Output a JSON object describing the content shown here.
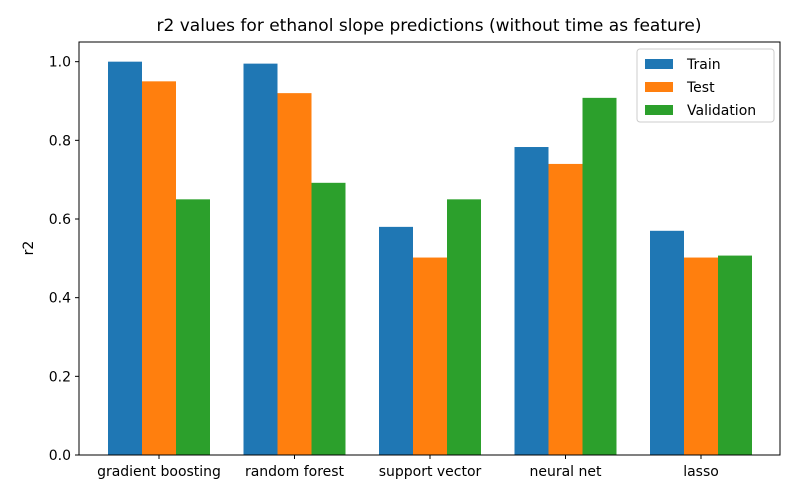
{
  "chart_data": {
    "type": "bar",
    "title": "r2 values for ethanol slope predictions (without time as feature)",
    "xlabel": "",
    "ylabel": "r2",
    "categories": [
      "gradient boosting",
      "random forest",
      "support vector",
      "neural net",
      "lasso"
    ],
    "series": [
      {
        "name": "Train",
        "color": "#1f77b4",
        "values": [
          1.0,
          0.995,
          0.58,
          0.783,
          0.57
        ]
      },
      {
        "name": "Test",
        "color": "#ff7f0e",
        "values": [
          0.95,
          0.92,
          0.502,
          0.74,
          0.502
        ]
      },
      {
        "name": "Validation",
        "color": "#2ca02c",
        "values": [
          0.65,
          0.692,
          0.65,
          0.908,
          0.507
        ]
      }
    ],
    "ylim": [
      0,
      1.05
    ],
    "yticks": [
      0.0,
      0.2,
      0.4,
      0.6,
      0.8,
      1.0
    ],
    "ytick_labels": [
      "0.0",
      "0.2",
      "0.4",
      "0.6",
      "0.8",
      "1.0"
    ],
    "grid": false,
    "legend_position": "top-right"
  }
}
